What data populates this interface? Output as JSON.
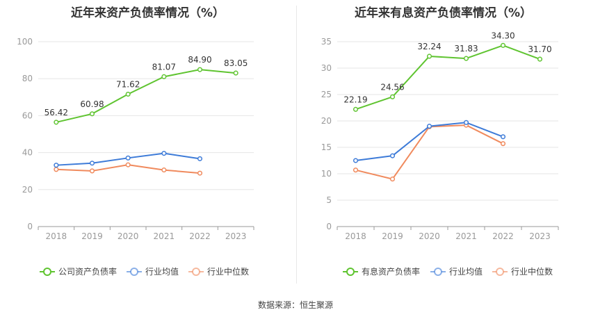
{
  "source_label": "数据来源：恒生聚源",
  "chart_data": [
    {
      "type": "line",
      "title": "近年来资产负债率情况（%）",
      "categories": [
        "2018",
        "2019",
        "2020",
        "2021",
        "2022",
        "2023"
      ],
      "ylim": [
        0,
        100
      ],
      "yticks": [
        "0",
        "20",
        "40",
        "60",
        "80",
        "100"
      ],
      "series": [
        {
          "name": "公司资产负债率",
          "color": "#5fc430",
          "values": [
            56.42,
            60.98,
            71.62,
            81.07,
            84.9,
            83.05
          ],
          "labels": [
            "56.42",
            "60.98",
            "71.62",
            "81.07",
            "84.90",
            "83.05"
          ]
        },
        {
          "name": "行业均值",
          "color": "#3d7bd8",
          "values": [
            33.2,
            34.3,
            37.1,
            39.6,
            36.7,
            null
          ]
        },
        {
          "name": "行业中位数",
          "color": "#f08a5d",
          "values": [
            30.9,
            30.1,
            33.4,
            30.6,
            28.9,
            null
          ]
        }
      ],
      "legend": "bottom",
      "grid": true
    },
    {
      "type": "line",
      "title": "近年来有息资产负债率情况（%）",
      "categories": [
        "2018",
        "2019",
        "2020",
        "2021",
        "2022",
        "2023"
      ],
      "ylim": [
        0,
        35
      ],
      "yticks": [
        "0",
        "5",
        "10",
        "15",
        "20",
        "25",
        "30",
        "35"
      ],
      "series": [
        {
          "name": "有息资产负债率",
          "color": "#5fc430",
          "values": [
            22.19,
            24.56,
            32.24,
            31.83,
            34.3,
            31.7
          ],
          "labels": [
            "22.19",
            "24.56",
            "32.24",
            "31.83",
            "34.30",
            "31.70"
          ]
        },
        {
          "name": "行业均值",
          "color": "#3d7bd8",
          "values": [
            12.5,
            13.4,
            19.0,
            19.7,
            17.0,
            null
          ]
        },
        {
          "name": "行业中位数",
          "color": "#f08a5d",
          "values": [
            10.7,
            9.0,
            18.9,
            19.2,
            15.7,
            null
          ]
        }
      ],
      "legend": "bottom",
      "grid": true
    }
  ]
}
